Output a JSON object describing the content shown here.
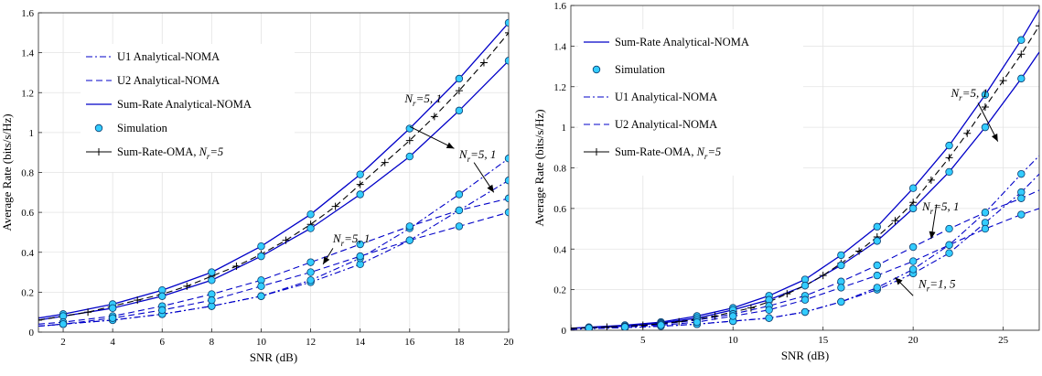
{
  "chart_data": [
    {
      "type": "line",
      "xlabel": "SNR (dB)",
      "ylabel": "Average Rate (bits/s/Hz)",
      "xlim": [
        1,
        20
      ],
      "ylim": [
        0,
        1.6
      ],
      "xticks": [
        2,
        4,
        6,
        8,
        10,
        12,
        14,
        16,
        18,
        20
      ],
      "yticks": [
        0,
        0.2,
        0.4,
        0.6,
        0.8,
        1,
        1.2,
        1.4,
        1.6
      ],
      "grid": true,
      "legend_position": "top-left",
      "legend": [
        {
          "label": "U1 Analytical-NOMA",
          "style": "dashdot"
        },
        {
          "label": "U2 Analytical-NOMA",
          "style": "dashed"
        },
        {
          "label": "Sum-Rate Analytical-NOMA",
          "style": "solid"
        },
        {
          "label": "Simulation",
          "style": "marker"
        },
        {
          "label": "Sum-Rate-OMA, N_r=5",
          "style": "plus-dashed"
        }
      ],
      "series": [
        {
          "legend": 2,
          "x": [
            1,
            2,
            4,
            6,
            8,
            10,
            12,
            14,
            16,
            18,
            20
          ],
          "y": [
            0.07,
            0.09,
            0.14,
            0.21,
            0.3,
            0.43,
            0.59,
            0.79,
            1.02,
            1.27,
            1.55
          ]
        },
        {
          "legend": 2,
          "x": [
            1,
            2,
            4,
            6,
            8,
            10,
            12,
            14,
            16,
            18,
            20
          ],
          "y": [
            0.06,
            0.08,
            0.12,
            0.18,
            0.26,
            0.38,
            0.52,
            0.69,
            0.88,
            1.11,
            1.36
          ]
        },
        {
          "legend": 0,
          "x": [
            1,
            2,
            4,
            6,
            8,
            10,
            12,
            14,
            16,
            18,
            20
          ],
          "y": [
            0.03,
            0.04,
            0.06,
            0.09,
            0.13,
            0.18,
            0.25,
            0.34,
            0.46,
            0.61,
            0.76
          ]
        },
        {
          "legend": 0,
          "x": [
            1,
            2,
            4,
            6,
            8,
            10,
            12,
            14,
            16,
            18,
            20
          ],
          "y": [
            0.03,
            0.04,
            0.06,
            0.09,
            0.13,
            0.18,
            0.26,
            0.37,
            0.52,
            0.69,
            0.87
          ]
        },
        {
          "legend": 1,
          "x": [
            1,
            2,
            4,
            6,
            8,
            10,
            12,
            14,
            16,
            18,
            20
          ],
          "y": [
            0.04,
            0.05,
            0.08,
            0.13,
            0.19,
            0.26,
            0.35,
            0.44,
            0.53,
            0.61,
            0.67
          ]
        },
        {
          "legend": 1,
          "x": [
            1,
            2,
            4,
            6,
            8,
            10,
            12,
            14,
            16,
            18,
            20
          ],
          "y": [
            0.03,
            0.04,
            0.07,
            0.11,
            0.16,
            0.23,
            0.3,
            0.38,
            0.46,
            0.53,
            0.6
          ]
        },
        {
          "legend": 4,
          "x": [
            1,
            2,
            3,
            4,
            5,
            6,
            7,
            8,
            9,
            10,
            11,
            12,
            13,
            14,
            15,
            16,
            17,
            18,
            19,
            20
          ],
          "y": [
            0.06,
            0.08,
            0.1,
            0.13,
            0.16,
            0.19,
            0.23,
            0.28,
            0.33,
            0.39,
            0.46,
            0.54,
            0.63,
            0.74,
            0.85,
            0.96,
            1.08,
            1.21,
            1.35,
            1.5
          ]
        }
      ],
      "simulation": [
        {
          "x": [
            2,
            4,
            6,
            8,
            10,
            12,
            14,
            16,
            18,
            20
          ],
          "y": [
            0.09,
            0.14,
            0.21,
            0.3,
            0.43,
            0.59,
            0.79,
            1.02,
            1.27,
            1.55
          ]
        },
        {
          "x": [
            2,
            4,
            6,
            8,
            10,
            12,
            14,
            16,
            18,
            20
          ],
          "y": [
            0.08,
            0.12,
            0.18,
            0.26,
            0.38,
            0.52,
            0.69,
            0.88,
            1.11,
            1.36
          ]
        },
        {
          "x": [
            2,
            4,
            6,
            8,
            10,
            12,
            14,
            16,
            18,
            20
          ],
          "y": [
            0.04,
            0.06,
            0.09,
            0.13,
            0.18,
            0.25,
            0.34,
            0.46,
            0.61,
            0.76
          ]
        },
        {
          "x": [
            2,
            4,
            6,
            8,
            10,
            12,
            14,
            16,
            18,
            20
          ],
          "y": [
            0.04,
            0.06,
            0.09,
            0.13,
            0.18,
            0.26,
            0.37,
            0.52,
            0.69,
            0.87
          ]
        },
        {
          "x": [
            2,
            4,
            6,
            8,
            10,
            12,
            14,
            16,
            18,
            20
          ],
          "y": [
            0.05,
            0.08,
            0.13,
            0.19,
            0.26,
            0.35,
            0.44,
            0.53,
            0.61,
            0.67
          ]
        },
        {
          "x": [
            2,
            4,
            6,
            8,
            10,
            12,
            14,
            16,
            18,
            20
          ],
          "y": [
            0.04,
            0.07,
            0.11,
            0.16,
            0.23,
            0.3,
            0.38,
            0.46,
            0.53,
            0.6
          ]
        }
      ],
      "annotations": [
        {
          "text": "N_r=5, 1",
          "x": 15.8,
          "y": 1.15
        },
        {
          "text": "N_r=5, 1",
          "x": 18.0,
          "y": 0.87
        },
        {
          "text": "N_r=5, 1",
          "x": 12.9,
          "y": 0.45
        }
      ]
    },
    {
      "type": "line",
      "xlabel": "SNR (dB)",
      "ylabel": "Average Rate (bits/s/Hz)",
      "xlim": [
        1,
        27
      ],
      "ylim": [
        0,
        1.6
      ],
      "xticks": [
        5,
        10,
        15,
        20,
        25
      ],
      "yticks": [
        0,
        0.2,
        0.4,
        0.6,
        0.8,
        1,
        1.2,
        1.4,
        1.6
      ],
      "grid": true,
      "legend_position": "top-left",
      "legend": [
        {
          "label": "Sum-Rate Analytical-NOMA",
          "style": "solid"
        },
        {
          "label": "Simulation",
          "style": "marker"
        },
        {
          "label": "U1 Analytical-NOMA",
          "style": "dashdot"
        },
        {
          "label": "U2 Analytical-NOMA",
          "style": "dashed"
        },
        {
          "label": "Sum-Rate-OMA, N_r=5",
          "style": "plus-dashed"
        }
      ],
      "series": [
        {
          "legend": 0,
          "x": [
            1,
            2,
            4,
            6,
            8,
            10,
            12,
            14,
            16,
            18,
            20,
            22,
            24,
            26,
            27
          ],
          "y": [
            0.01,
            0.015,
            0.025,
            0.04,
            0.07,
            0.11,
            0.17,
            0.25,
            0.37,
            0.51,
            0.7,
            0.91,
            1.16,
            1.43,
            1.58
          ]
        },
        {
          "legend": 0,
          "x": [
            1,
            2,
            4,
            6,
            8,
            10,
            12,
            14,
            16,
            18,
            20,
            22,
            24,
            26,
            27
          ],
          "y": [
            0.01,
            0.013,
            0.02,
            0.035,
            0.06,
            0.1,
            0.15,
            0.22,
            0.32,
            0.44,
            0.6,
            0.78,
            1.0,
            1.24,
            1.37
          ]
        },
        {
          "legend": 2,
          "x": [
            1,
            2,
            4,
            6,
            8,
            10,
            12,
            14,
            16,
            18,
            20,
            22,
            24,
            26,
            27
          ],
          "y": [
            0.005,
            0.008,
            0.013,
            0.02,
            0.03,
            0.045,
            0.06,
            0.09,
            0.14,
            0.2,
            0.28,
            0.38,
            0.53,
            0.68,
            0.77
          ]
        },
        {
          "legend": 2,
          "x": [
            1,
            2,
            4,
            6,
            8,
            10,
            12,
            14,
            16,
            18,
            20,
            22,
            24,
            26,
            27
          ],
          "y": [
            0.005,
            0.008,
            0.013,
            0.02,
            0.03,
            0.045,
            0.06,
            0.09,
            0.14,
            0.21,
            0.3,
            0.42,
            0.58,
            0.77,
            0.86
          ]
        },
        {
          "legend": 3,
          "x": [
            1,
            2,
            4,
            6,
            8,
            10,
            12,
            14,
            16,
            18,
            20,
            22,
            24,
            26,
            27
          ],
          "y": [
            0.01,
            0.012,
            0.018,
            0.03,
            0.05,
            0.08,
            0.12,
            0.17,
            0.24,
            0.32,
            0.41,
            0.5,
            0.58,
            0.65,
            0.69
          ]
        },
        {
          "legend": 3,
          "x": [
            1,
            2,
            4,
            6,
            8,
            10,
            12,
            14,
            16,
            18,
            20,
            22,
            24,
            26,
            27
          ],
          "y": [
            0.01,
            0.011,
            0.016,
            0.025,
            0.04,
            0.07,
            0.1,
            0.15,
            0.21,
            0.27,
            0.34,
            0.42,
            0.5,
            0.57,
            0.6
          ]
        },
        {
          "legend": 4,
          "x": [
            1,
            2,
            3,
            4,
            5,
            6,
            7,
            8,
            9,
            10,
            11,
            12,
            13,
            14,
            15,
            16,
            17,
            18,
            19,
            20,
            21,
            22,
            23,
            24,
            25,
            26,
            27
          ],
          "y": [
            0.01,
            0.012,
            0.016,
            0.02,
            0.025,
            0.033,
            0.042,
            0.055,
            0.07,
            0.09,
            0.11,
            0.14,
            0.18,
            0.22,
            0.27,
            0.33,
            0.39,
            0.46,
            0.54,
            0.63,
            0.74,
            0.85,
            0.97,
            1.1,
            1.23,
            1.36,
            1.5
          ]
        }
      ],
      "simulation": [
        {
          "x": [
            2,
            4,
            6,
            8,
            10,
            12,
            14,
            16,
            18,
            20,
            22,
            24,
            26
          ],
          "y": [
            0.015,
            0.025,
            0.04,
            0.07,
            0.11,
            0.17,
            0.25,
            0.37,
            0.51,
            0.7,
            0.91,
            1.16,
            1.43
          ]
        },
        {
          "x": [
            2,
            4,
            6,
            8,
            10,
            12,
            14,
            16,
            18,
            20,
            22,
            24,
            26
          ],
          "y": [
            0.013,
            0.02,
            0.035,
            0.06,
            0.1,
            0.15,
            0.22,
            0.32,
            0.44,
            0.6,
            0.78,
            1.0,
            1.24
          ]
        },
        {
          "x": [
            2,
            4,
            6,
            8,
            10,
            12,
            14,
            16,
            18,
            20,
            22,
            24,
            26
          ],
          "y": [
            0.008,
            0.013,
            0.02,
            0.03,
            0.045,
            0.06,
            0.09,
            0.14,
            0.2,
            0.28,
            0.38,
            0.53,
            0.68
          ]
        },
        {
          "x": [
            2,
            4,
            6,
            8,
            10,
            12,
            14,
            16,
            18,
            20,
            22,
            24,
            26
          ],
          "y": [
            0.008,
            0.013,
            0.02,
            0.03,
            0.045,
            0.06,
            0.09,
            0.14,
            0.21,
            0.3,
            0.42,
            0.58,
            0.77
          ]
        },
        {
          "x": [
            2,
            4,
            6,
            8,
            10,
            12,
            14,
            16,
            18,
            20,
            22,
            24,
            26
          ],
          "y": [
            0.012,
            0.018,
            0.03,
            0.05,
            0.08,
            0.12,
            0.17,
            0.24,
            0.32,
            0.41,
            0.5,
            0.58,
            0.65
          ]
        },
        {
          "x": [
            2,
            4,
            6,
            8,
            10,
            12,
            14,
            16,
            18,
            20,
            22,
            24,
            26
          ],
          "y": [
            0.011,
            0.016,
            0.025,
            0.04,
            0.07,
            0.1,
            0.15,
            0.21,
            0.27,
            0.34,
            0.42,
            0.5,
            0.57
          ]
        }
      ],
      "annotations": [
        {
          "text": "N_r=5, 1",
          "x": 22.1,
          "y": 1.15
        },
        {
          "text": "N_r=5, 1",
          "x": 20.5,
          "y": 0.59
        },
        {
          "text": "N_r=1, 5",
          "x": 20.3,
          "y": 0.21
        }
      ]
    }
  ]
}
